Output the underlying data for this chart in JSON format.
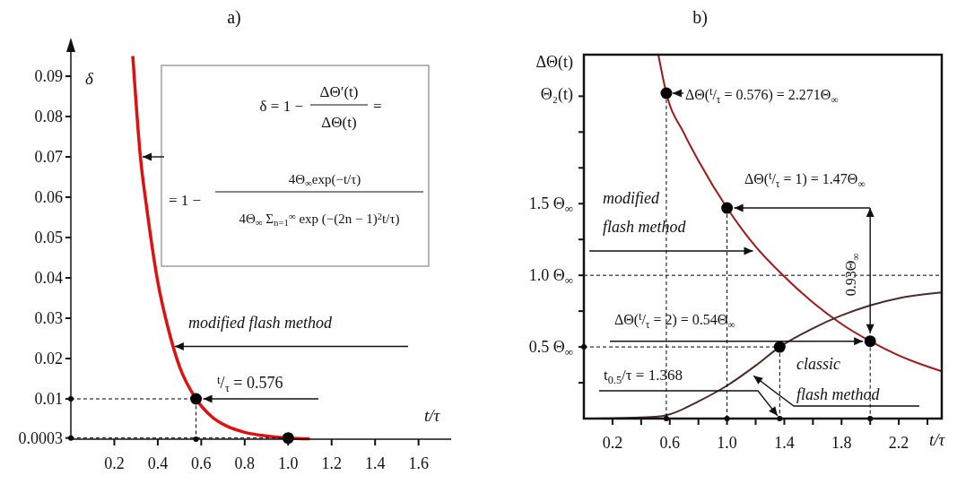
{
  "chart_data": [
    {
      "type": "line",
      "title": "a)",
      "xlabel": "t/τ",
      "ylabel": "δ",
      "xlim": [
        0,
        1.75
      ],
      "ylim": [
        0,
        0.096
      ],
      "xticks": [
        0.2,
        0.4,
        0.6,
        0.8,
        {
          "value": 1,
          "label": "1.0"
        },
        1.2,
        1.4,
        1.6
      ],
      "yticks": [
        0.0003,
        0.01,
        0.02,
        0.03,
        0.04,
        0.05,
        0.06,
        0.07,
        0.08,
        0.09
      ],
      "series": [
        {
          "color": "#e01010",
          "x": [
            0.285,
            0.32,
            0.35,
            0.4,
            0.45,
            0.5,
            0.576,
            0.65,
            0.7,
            0.8,
            0.9,
            1.0,
            1.1
          ],
          "values": [
            0.095,
            0.07,
            0.057,
            0.039,
            0.027,
            0.018,
            0.01,
            0.0055,
            0.0037,
            0.0017,
            0.0008,
            0.0003,
            0.0001
          ]
        },
        {
          "type": "scatter",
          "color": "#000000",
          "x": [
            0.576,
            1.0
          ],
          "values": [
            0.01,
            0.0003
          ]
        },
        {
          "color": "#000000",
          "line_style": "dashed",
          "marker": "circle",
          "x": [
            0,
            0.576,
            0.576
          ],
          "values": [
            0.01,
            0.01,
            0
          ]
        },
        {
          "color": "#000000",
          "line_style": "dashed",
          "marker": "circle",
          "x": [
            0,
            1.0
          ],
          "values": [
            0.0003,
            0.0003
          ]
        }
      ],
      "annotations": [
        "δ = 1 −",
        "ΔΘ′(t)",
        "ΔΘ(t)",
        "=",
        "= 1 −",
        "4Θ$_{∞}$exp(−t/τ)",
        "4Θ$_{∞}$ Σ$_{n=1}$$^{∞}$ exp (−(2n − 1)$^{2}$t/τ)",
        {
          "text": "modified flash method",
          "x": 0.47,
          "y": 0.023
        },
        {
          "text": "$^{t}$/$_{τ}$ = 0.576",
          "x": 0.576,
          "y": 0.01
        }
      ]
    },
    {
      "type": "line",
      "title": "b)",
      "xlabel": "t/τ",
      "ylabel": "ΔΘ(t)\nΘ₂(t)",
      "xlim": [
        0,
        2.5
      ],
      "ylim": [
        0,
        2.54
      ],
      "xticks": [
        0.2,
        {
          "value": 0.4,
          "label": null
        },
        0.6,
        {
          "value": 0.8,
          "label": null
        },
        {
          "value": 1,
          "label": "1.0"
        },
        {
          "value": 1.2,
          "label": null
        },
        1.4,
        {
          "value": 1.6,
          "label": null
        },
        1.8,
        {
          "value": 2,
          "label": null
        },
        2.2,
        {
          "value": 2.4,
          "label": null
        }
      ],
      "yticks": [
        {
          "value": 0.25,
          "label": null
        },
        {
          "value": 0.5,
          "label": "0.5 Θ$_{∞}$"
        },
        {
          "value": 0.75,
          "label": null
        },
        {
          "value": 1,
          "label": "1.0 Θ$_{∞}$"
        },
        {
          "value": 1.25,
          "label": null
        },
        {
          "value": 1.5,
          "label": "1.5 Θ$_{∞}$"
        },
        {
          "value": 1.75,
          "label": null
        },
        {
          "value": 2,
          "label": null
        },
        {
          "value": 2.25,
          "label": null
        }
      ],
      "ref_lines": [
        {
          "axis": "y",
          "value": 1,
          "line_style": "dashed",
          "color": "#000000"
        }
      ],
      "series": [
        {
          "color": "#a01818",
          "x": [
            0.52,
            0.576,
            0.7,
            0.8,
            1.0,
            1.2,
            1.38,
            1.6,
            1.8,
            2.0,
            2.2,
            2.5
          ],
          "values": [
            2.54,
            2.271,
            1.99,
            1.8,
            1.47,
            1.2,
            1.01,
            0.81,
            0.66,
            0.54,
            0.44,
            0.33
          ]
        },
        {
          "color": "#4a2a2a",
          "x": [
            0,
            0.3,
            0.5,
            0.6,
            0.8,
            1.0,
            1.2,
            1.368,
            1.6,
            1.8,
            2.0,
            2.2,
            2.5
          ],
          "values": [
            0,
            0.005,
            0.012,
            0.03,
            0.12,
            0.23,
            0.37,
            0.5,
            0.63,
            0.72,
            0.79,
            0.84,
            0.88
          ]
        },
        {
          "type": "scatter",
          "color": "#000000",
          "x": [
            0.576,
            1,
            1.368,
            2
          ],
          "values": [
            2.271,
            1.47,
            0.5,
            0.54
          ]
        },
        {
          "color": "#000000",
          "line_style": "dashed",
          "x": [
            0.576,
            0.576
          ],
          "values": [
            2.271,
            0
          ]
        },
        {
          "color": "#000000",
          "line_style": "dashed",
          "x": [
            1,
            1
          ],
          "values": [
            1.47,
            0
          ]
        },
        {
          "color": "#000000",
          "line_style": "dashed",
          "x": [
            1.368,
            1.368
          ],
          "values": [
            0.5,
            0
          ]
        },
        {
          "color": "#000000",
          "line_style": "dashed",
          "x": [
            2,
            2
          ],
          "values": [
            0.54,
            0
          ]
        },
        {
          "color": "#000000",
          "line_style": "dashed",
          "x": [
            0,
            1.368
          ],
          "values": [
            0.5,
            0.5
          ]
        },
        {
          "color": "#000000",
          "line_style": "dashed",
          "marker": "circle",
          "x": [
            0.576,
            0.8,
            1,
            1.2,
            1.368,
            1.7,
            2,
            1,
            0
          ],
          "values": [
            0,
            null,
            0,
            null,
            0,
            null,
            0,
            null,
            0.5
          ]
        }
      ],
      "annotations": [
        {
          "text": "ΔΘ($^{t}$/$_{τ}$ = 0.576) = 2.271Θ$_{∞}$",
          "x": 0.576,
          "y": 2.271
        },
        {
          "text": "ΔΘ($^{t}$/$_{τ}$ = 1) = 1.47Θ$_{∞}$",
          "x": 1,
          "y": 1.47
        },
        {
          "text": "ΔΘ($^{t}$/$_{τ}$ = 2) = 0.54Θ$_{∞}$",
          "x": 2,
          "y": 0.54
        },
        {
          "text": "modified\nflash method",
          "x": 1.2,
          "y": 1.17
        },
        {
          "text": "t$_{0.5}$/τ = 1.368",
          "x": 1.368,
          "y": 0
        },
        {
          "text": "classic\nflash method",
          "x": 1.17,
          "y": 0.31
        },
        {
          "text": "0.93Θ$_{∞}$",
          "x": 2,
          "y": 1.005
        }
      ]
    }
  ]
}
